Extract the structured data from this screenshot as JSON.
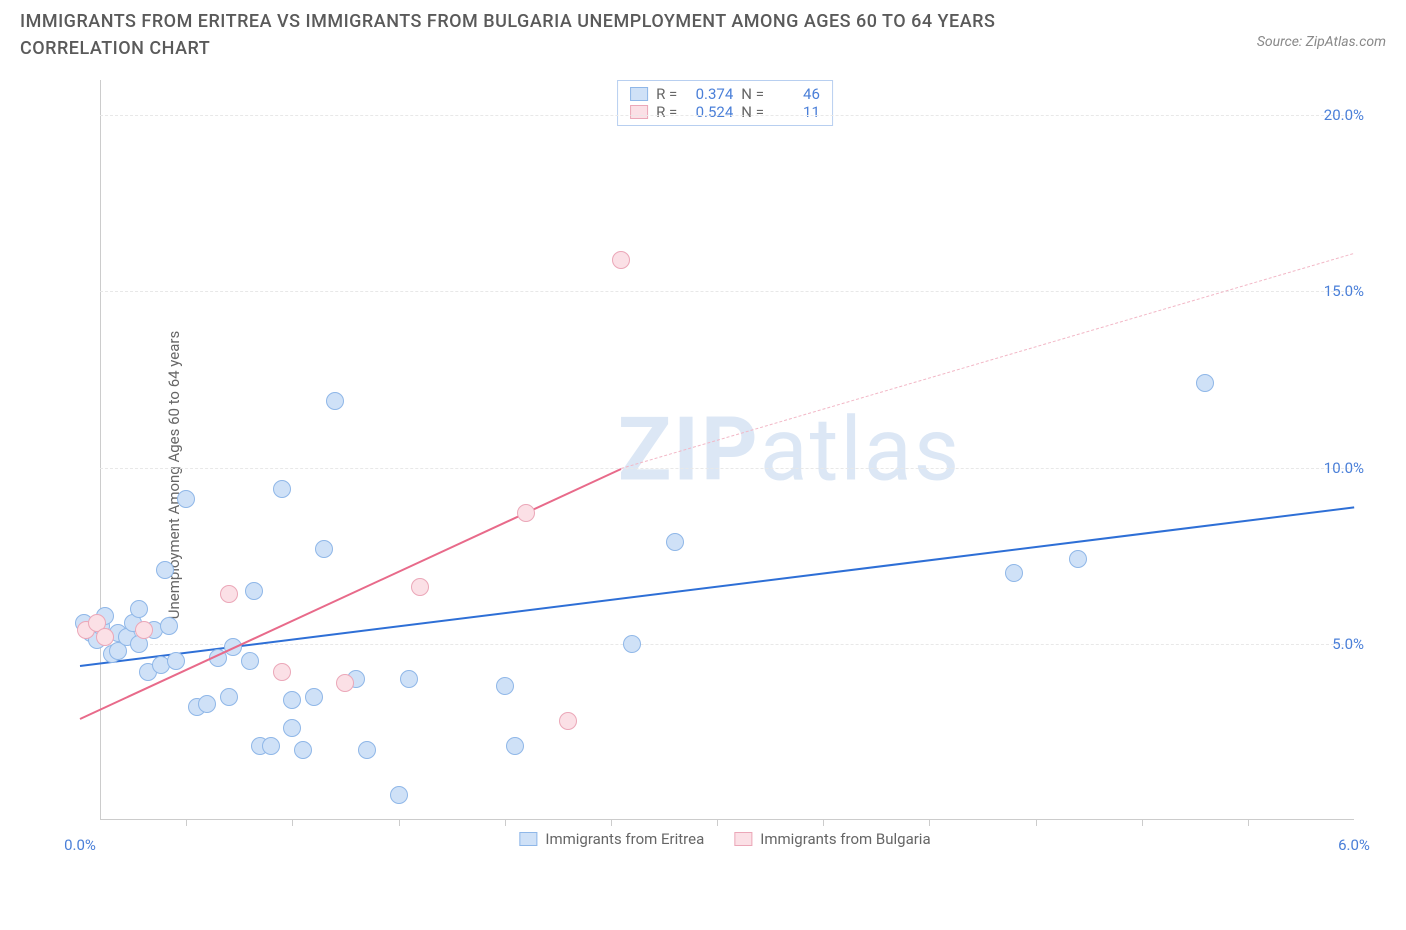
{
  "title": "IMMIGRANTS FROM ERITREA VS IMMIGRANTS FROM BULGARIA UNEMPLOYMENT AMONG AGES 60 TO 64 YEARS CORRELATION CHART",
  "source": "Source: ZipAtlas.com",
  "watermark": {
    "bold": "ZIP",
    "rest": "atlas"
  },
  "chart": {
    "type": "scatter",
    "y_axis_label": "Unemployment Among Ages 60 to 64 years",
    "xlim": [
      0.0,
      6.0
    ],
    "ylim": [
      0.0,
      21.0
    ],
    "x_ticks_major": [
      0.0,
      6.0
    ],
    "x_ticks_minor": [
      0.5,
      1.0,
      1.5,
      2.0,
      2.5,
      3.0,
      3.5,
      4.0,
      4.5,
      5.0,
      5.5
    ],
    "x_tick_format": "percent1",
    "y_ticks": [
      5.0,
      10.0,
      15.0,
      20.0
    ],
    "y_tick_format": "percent1",
    "grid_color": "#e8e8e8",
    "axis_color": "#cccccc",
    "background_color": "#ffffff",
    "label_color": "#666666",
    "tick_label_color": "#4a7fd8",
    "tick_label_fontsize": 15,
    "title_fontsize": 18,
    "title_color": "#5a5a5a",
    "series": [
      {
        "name": "Immigrants from Eritrea",
        "color_fill": "#cfe1f7",
        "color_stroke": "#8fb7e8",
        "marker_radius": 9,
        "R": "0.374",
        "N": "46",
        "trend": {
          "x1": 0.0,
          "y1": 4.4,
          "x2": 6.0,
          "y2": 8.9,
          "color": "#2e6fd6",
          "width": 2.5,
          "dashed": false
        },
        "points": [
          [
            0.02,
            5.6
          ],
          [
            0.05,
            5.3
          ],
          [
            0.08,
            5.1
          ],
          [
            0.1,
            5.5
          ],
          [
            0.12,
            5.8
          ],
          [
            0.15,
            4.7
          ],
          [
            0.18,
            5.3
          ],
          [
            0.18,
            4.8
          ],
          [
            0.22,
            5.2
          ],
          [
            0.25,
            5.6
          ],
          [
            0.28,
            5.0
          ],
          [
            0.28,
            6.0
          ],
          [
            0.32,
            4.2
          ],
          [
            0.35,
            5.4
          ],
          [
            0.38,
            4.4
          ],
          [
            0.4,
            7.1
          ],
          [
            0.42,
            5.5
          ],
          [
            0.45,
            4.5
          ],
          [
            0.5,
            9.1
          ],
          [
            0.55,
            3.2
          ],
          [
            0.6,
            3.3
          ],
          [
            0.65,
            4.6
          ],
          [
            0.7,
            3.5
          ],
          [
            0.72,
            4.9
          ],
          [
            0.8,
            4.5
          ],
          [
            0.82,
            6.5
          ],
          [
            0.85,
            2.1
          ],
          [
            0.9,
            2.1
          ],
          [
            0.95,
            9.4
          ],
          [
            1.0,
            2.6
          ],
          [
            1.0,
            3.4
          ],
          [
            1.05,
            2.0
          ],
          [
            1.1,
            3.5
          ],
          [
            1.15,
            7.7
          ],
          [
            1.2,
            11.9
          ],
          [
            1.3,
            4.0
          ],
          [
            1.35,
            2.0
          ],
          [
            1.5,
            0.7
          ],
          [
            1.55,
            4.0
          ],
          [
            2.0,
            3.8
          ],
          [
            2.05,
            2.1
          ],
          [
            2.6,
            5.0
          ],
          [
            2.8,
            7.9
          ],
          [
            4.4,
            7.0
          ],
          [
            4.7,
            7.4
          ],
          [
            5.3,
            12.4
          ]
        ]
      },
      {
        "name": "Immigrants from Bulgaria",
        "color_fill": "#fbe0e6",
        "color_stroke": "#eba7b8",
        "marker_radius": 9,
        "R": "0.524",
        "N": "11",
        "trend_solid": {
          "x1": 0.0,
          "y1": 2.9,
          "x2": 2.55,
          "y2": 10.0,
          "color": "#e86a8a",
          "width": 2.5
        },
        "trend_dashed": {
          "x1": 2.55,
          "y1": 10.0,
          "x2": 6.0,
          "y2": 16.1,
          "color": "#f2b7c6",
          "width": 1.5
        },
        "points": [
          [
            0.03,
            5.4
          ],
          [
            0.08,
            5.6
          ],
          [
            0.12,
            5.2
          ],
          [
            0.3,
            5.4
          ],
          [
            0.7,
            6.4
          ],
          [
            0.95,
            4.2
          ],
          [
            1.25,
            3.9
          ],
          [
            1.6,
            6.6
          ],
          [
            2.1,
            8.7
          ],
          [
            2.3,
            2.8
          ],
          [
            2.55,
            15.9
          ]
        ]
      }
    ],
    "legend_top": {
      "border_color": "#b8cff0",
      "rows": [
        {
          "swatch_fill": "#cfe1f7",
          "swatch_stroke": "#8fb7e8",
          "R_label": "R =",
          "R": "0.374",
          "N_label": "N =",
          "N": "46"
        },
        {
          "swatch_fill": "#fbe0e6",
          "swatch_stroke": "#eba7b8",
          "R_label": "R =",
          "R": "0.524",
          "N_label": "N =",
          "N": "11"
        }
      ]
    },
    "legend_bottom": [
      {
        "swatch_fill": "#cfe1f7",
        "swatch_stroke": "#8fb7e8",
        "label": "Immigrants from Eritrea"
      },
      {
        "swatch_fill": "#fbe0e6",
        "swatch_stroke": "#eba7b8",
        "label": "Immigrants from Bulgaria"
      }
    ]
  }
}
